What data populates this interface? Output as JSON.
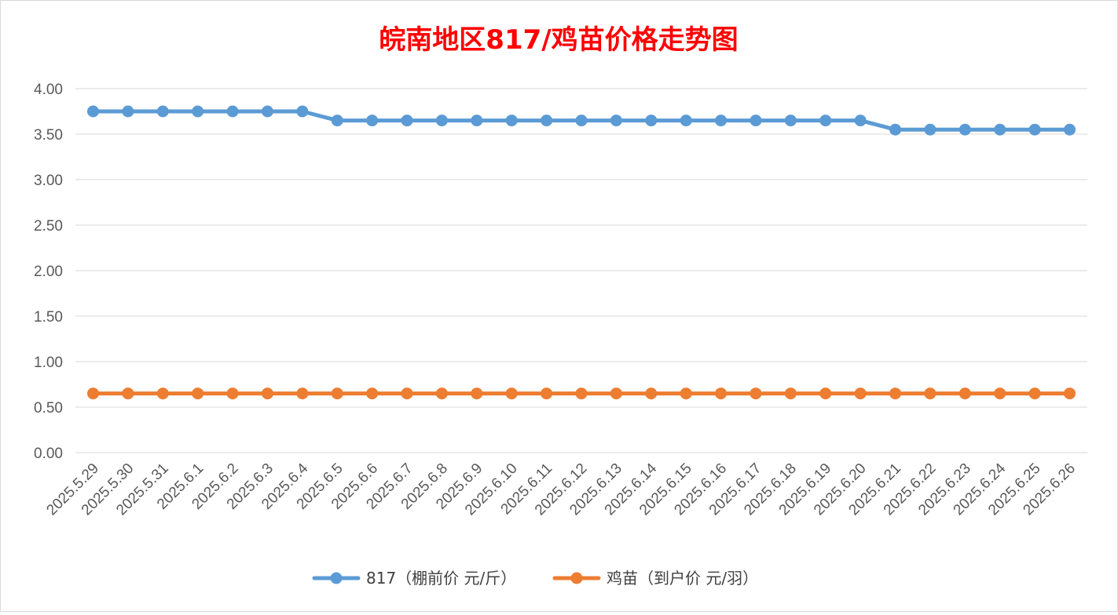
{
  "chart_data": {
    "type": "line",
    "title": "皖南地区817/鸡苗价格走势图",
    "xlabel": "",
    "ylabel": "",
    "ylim": [
      0,
      4
    ],
    "yticks": [
      "0.00",
      "0.50",
      "1.00",
      "1.50",
      "2.00",
      "2.50",
      "3.00",
      "3.50",
      "4.00"
    ],
    "grid": true,
    "legend_position": "bottom",
    "categories": [
      "2025.5.29",
      "2025.5.30",
      "2025.5.31",
      "2025.6.1",
      "2025.6.2",
      "2025.6.3",
      "2025.6.4",
      "2025.6.5",
      "2025.6.6",
      "2025.6.7",
      "2025.6.8",
      "2025.6.9",
      "2025.6.10",
      "2025.6.11",
      "2025.6.12",
      "2025.6.13",
      "2025.6.14",
      "2025.6.15",
      "2025.6.16",
      "2025.6.17",
      "2025.6.18",
      "2025.6.19",
      "2025.6.20",
      "2025.6.21",
      "2025.6.22",
      "2025.6.23",
      "2025.6.24",
      "2025.6.25",
      "2025.6.26"
    ],
    "series": [
      {
        "name": "817（棚前价 元/斤）",
        "color": "#5b9bd5",
        "values": [
          3.75,
          3.75,
          3.75,
          3.75,
          3.75,
          3.75,
          3.75,
          3.65,
          3.65,
          3.65,
          3.65,
          3.65,
          3.65,
          3.65,
          3.65,
          3.65,
          3.65,
          3.65,
          3.65,
          3.65,
          3.65,
          3.65,
          3.65,
          3.55,
          3.55,
          3.55,
          3.55,
          3.55,
          3.55
        ]
      },
      {
        "name": "鸡苗（到户价 元/羽）",
        "color": "#ed7d31",
        "values": [
          0.65,
          0.65,
          0.65,
          0.65,
          0.65,
          0.65,
          0.65,
          0.65,
          0.65,
          0.65,
          0.65,
          0.65,
          0.65,
          0.65,
          0.65,
          0.65,
          0.65,
          0.65,
          0.65,
          0.65,
          0.65,
          0.65,
          0.65,
          0.65,
          0.65,
          0.65,
          0.65,
          0.65,
          0.65
        ]
      }
    ]
  }
}
